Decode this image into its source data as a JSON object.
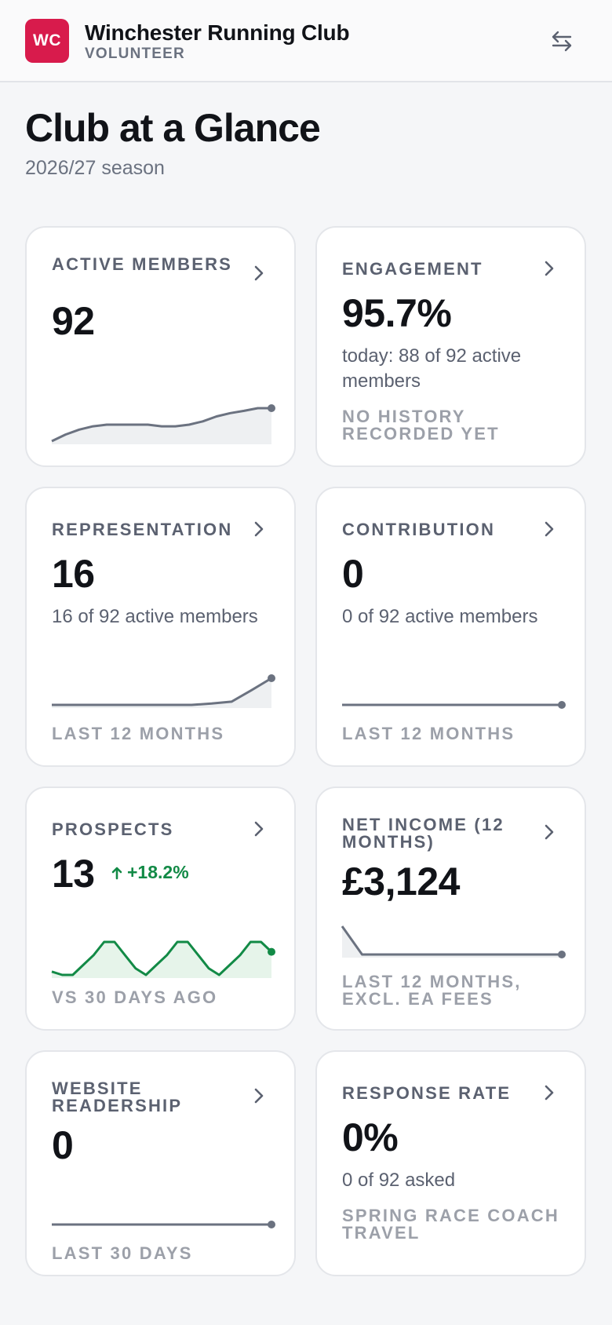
{
  "header": {
    "logo_text": "WC",
    "club_name": "Winchester Running Club",
    "role": "VOLUNTEER",
    "switch_icon": "swap-arrows-icon"
  },
  "page": {
    "title": "Club at a Glance",
    "season": "2026/27 season"
  },
  "colors": {
    "brand": "#d81b4c",
    "positive": "#128a46",
    "sparkline": "#6b7280",
    "sparkline_fill": "#eef0f2",
    "positive_fill": "#e6f4ea"
  },
  "cards": {
    "active_members": {
      "title": "ACTIVE MEMBERS",
      "value": "92",
      "spark": [
        0.0,
        0.2,
        0.35,
        0.45,
        0.5,
        0.5,
        0.5,
        0.5,
        0.45,
        0.45,
        0.5,
        0.6,
        0.75,
        0.85,
        0.92,
        1.0,
        1.0
      ]
    },
    "engagement": {
      "title": "ENGAGEMENT",
      "value": "95.7%",
      "description": "today: 88 of 92 active members",
      "footer": "NO HISTORY RECORDED YET"
    },
    "representation": {
      "title": "REPRESENTATION",
      "value": "16",
      "description": "16 of 92 active members",
      "footer": "LAST 12 MONTHS",
      "spark": [
        0,
        0,
        0,
        0,
        0,
        0,
        0,
        0,
        0.05,
        0.12,
        0.55,
        1.0
      ]
    },
    "contribution": {
      "title": "CONTRIBUTION",
      "value": "0",
      "description": "0 of 92 active members",
      "footer": "LAST 12 MONTHS",
      "spark": [
        0,
        0,
        0,
        0,
        0,
        0,
        0,
        0,
        0,
        0,
        0,
        0
      ]
    },
    "prospects": {
      "title": "PROSPECTS",
      "value": "13",
      "delta": "+18.2%",
      "footer": "VS 30 DAYS AGO",
      "spark": [
        0.1,
        0,
        0,
        0.3,
        0.6,
        1.0,
        1.0,
        0.6,
        0.2,
        0,
        0.3,
        0.6,
        1.0,
        1.0,
        0.6,
        0.2,
        0,
        0.3,
        0.6,
        1.0,
        1.0,
        0.7
      ]
    },
    "net_income": {
      "title": "NET INCOME (12 MONTHS)",
      "value": "£3,124",
      "footer": "LAST 12 MONTHS, EXCL. EA FEES",
      "spark": [
        1.0,
        0,
        0,
        0,
        0,
        0,
        0,
        0,
        0,
        0,
        0,
        0
      ]
    },
    "website_readership": {
      "title": "WEBSITE READERSHIP",
      "value": "0",
      "footer": "LAST 30 DAYS",
      "spark": [
        0,
        0,
        0,
        0,
        0,
        0,
        0,
        0,
        0,
        0
      ]
    },
    "response_rate": {
      "title": "RESPONSE RATE",
      "value": "0%",
      "description": "0 of 92 asked",
      "footer": "SPRING RACE COACH TRAVEL"
    }
  }
}
